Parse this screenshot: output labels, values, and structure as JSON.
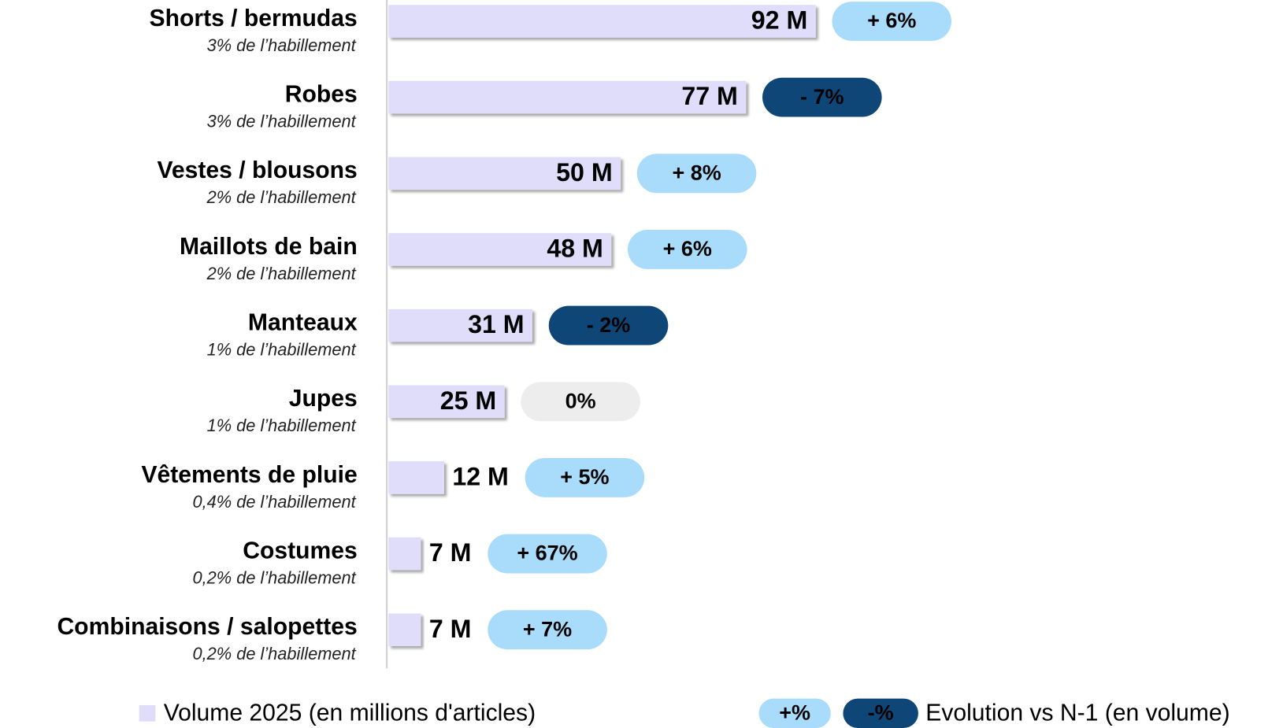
{
  "chart_data": {
    "type": "bar",
    "orientation": "horizontal",
    "categories": [
      "Shorts / bermudas",
      "Robes",
      "Vestes / blousons",
      "Maillots de bain",
      "Manteaux",
      "Jupes",
      "Vêtements de pluie",
      "Costumes",
      "Combinaisons / salopettes"
    ],
    "subtitles": [
      "3% de l’habillement",
      "3% de l’habillement",
      "2% de l’habillement",
      "2% de l’habillement",
      "1% de l’habillement",
      "1% de l’habillement",
      "0,4% de l’habillement",
      "0,2% de l’habillement",
      "0,2% de l’habillement"
    ],
    "values": [
      92,
      77,
      50,
      48,
      31,
      25,
      12,
      7,
      7
    ],
    "value_labels": [
      "92 M",
      "77 M",
      "50 M",
      "48 M",
      "31 M",
      "25 M",
      "12 M",
      "7 M",
      "7 M"
    ],
    "color": "#e0ddfb",
    "evolution": {
      "values": [
        6,
        -7,
        8,
        6,
        -2,
        0,
        5,
        67,
        7
      ],
      "labels": [
        "+ 6%",
        "- 7%",
        "+ 8%",
        "+ 6%",
        "- 2%",
        "0%",
        "+ 5%",
        "+ 67%",
        "+ 7%"
      ],
      "colors": {
        "positive": {
          "fill": "#a9dcfb",
          "text": "#0f4a7c"
        },
        "negative": {
          "fill": "#0d4677",
          "text": "#a9dcfb"
        },
        "zero": {
          "fill": "#ededed",
          "text": "#b8b8b8"
        }
      }
    },
    "legend": {
      "volume": "Volume 2025 (en millions d'articles)",
      "positive_label": "+%",
      "negative_label": "-%",
      "evolution": "Evolution vs N-1 (en volume)"
    }
  }
}
